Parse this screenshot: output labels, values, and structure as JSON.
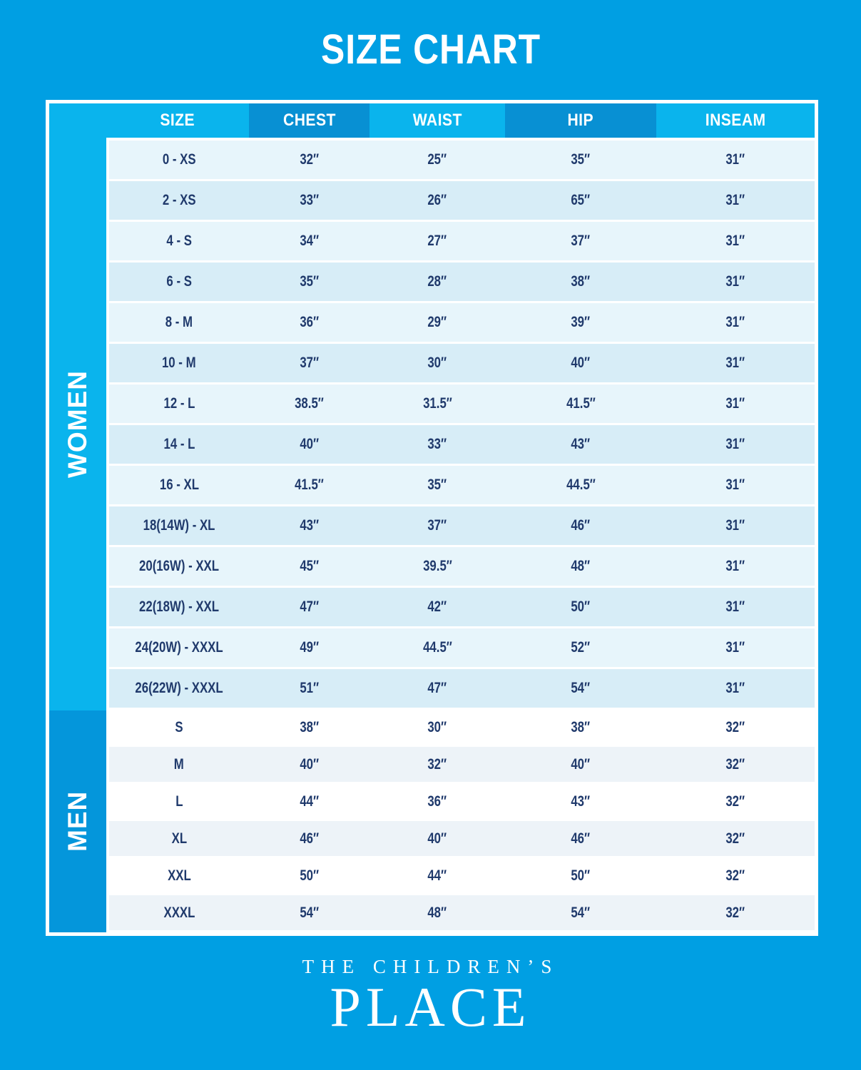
{
  "title": "SIZE CHART",
  "brand": {
    "line1": "THE CHILDREN’S",
    "line2": "PLACE"
  },
  "colors": {
    "page_bg": "#009FE3",
    "band_light": "#0AB4ED",
    "band_dark": "#0890D3",
    "men_band": "#0496DB",
    "row_light": "#E7F5FB",
    "row_dark": "#D7EDF7",
    "row_white": "#FFFFFF",
    "row_gray": "#EDF3F8",
    "text_navy": "#203A6C"
  },
  "chart_data": {
    "type": "table",
    "title": "SIZE CHART",
    "columns": [
      "SIZE",
      "CHEST",
      "WAIST",
      "HIP",
      "INSEAM"
    ],
    "sections": [
      {
        "label": "WOMEN",
        "rows": [
          [
            "0 - XS",
            "32″",
            "25″",
            "35″",
            "31″"
          ],
          [
            "2 - XS",
            "33″",
            "26″",
            "65″",
            "31″"
          ],
          [
            "4 - S",
            "34″",
            "27″",
            "37″",
            "31″"
          ],
          [
            "6 - S",
            "35″",
            "28″",
            "38″",
            "31″"
          ],
          [
            "8 - M",
            "36″",
            "29″",
            "39″",
            "31″"
          ],
          [
            "10 - M",
            "37″",
            "30″",
            "40″",
            "31″"
          ],
          [
            "12 - L",
            "38.5″",
            "31.5″",
            "41.5″",
            "31″"
          ],
          [
            "14 - L",
            "40″",
            "33″",
            "43″",
            "31″"
          ],
          [
            "16 - XL",
            "41.5″",
            "35″",
            "44.5″",
            "31″"
          ],
          [
            "18(14W) - XL",
            "43″",
            "37″",
            "46″",
            "31″"
          ],
          [
            "20(16W) - XXL",
            "45″",
            "39.5″",
            "48″",
            "31″"
          ],
          [
            "22(18W) - XXL",
            "47″",
            "42″",
            "50″",
            "31″"
          ],
          [
            "24(20W) - XXXL",
            "49″",
            "44.5″",
            "52″",
            "31″"
          ],
          [
            "26(22W) - XXXL",
            "51″",
            "47″",
            "54″",
            "31″"
          ]
        ]
      },
      {
        "label": "MEN",
        "rows": [
          [
            "S",
            "38″",
            "30″",
            "38″",
            "32″"
          ],
          [
            "M",
            "40″",
            "32″",
            "40″",
            "32″"
          ],
          [
            "L",
            "44″",
            "36″",
            "43″",
            "32″"
          ],
          [
            "XL",
            "46″",
            "40″",
            "46″",
            "32″"
          ],
          [
            "XXL",
            "50″",
            "44″",
            "50″",
            "32″"
          ],
          [
            "XXXL",
            "54″",
            "48″",
            "54″",
            "32″"
          ]
        ]
      }
    ]
  }
}
